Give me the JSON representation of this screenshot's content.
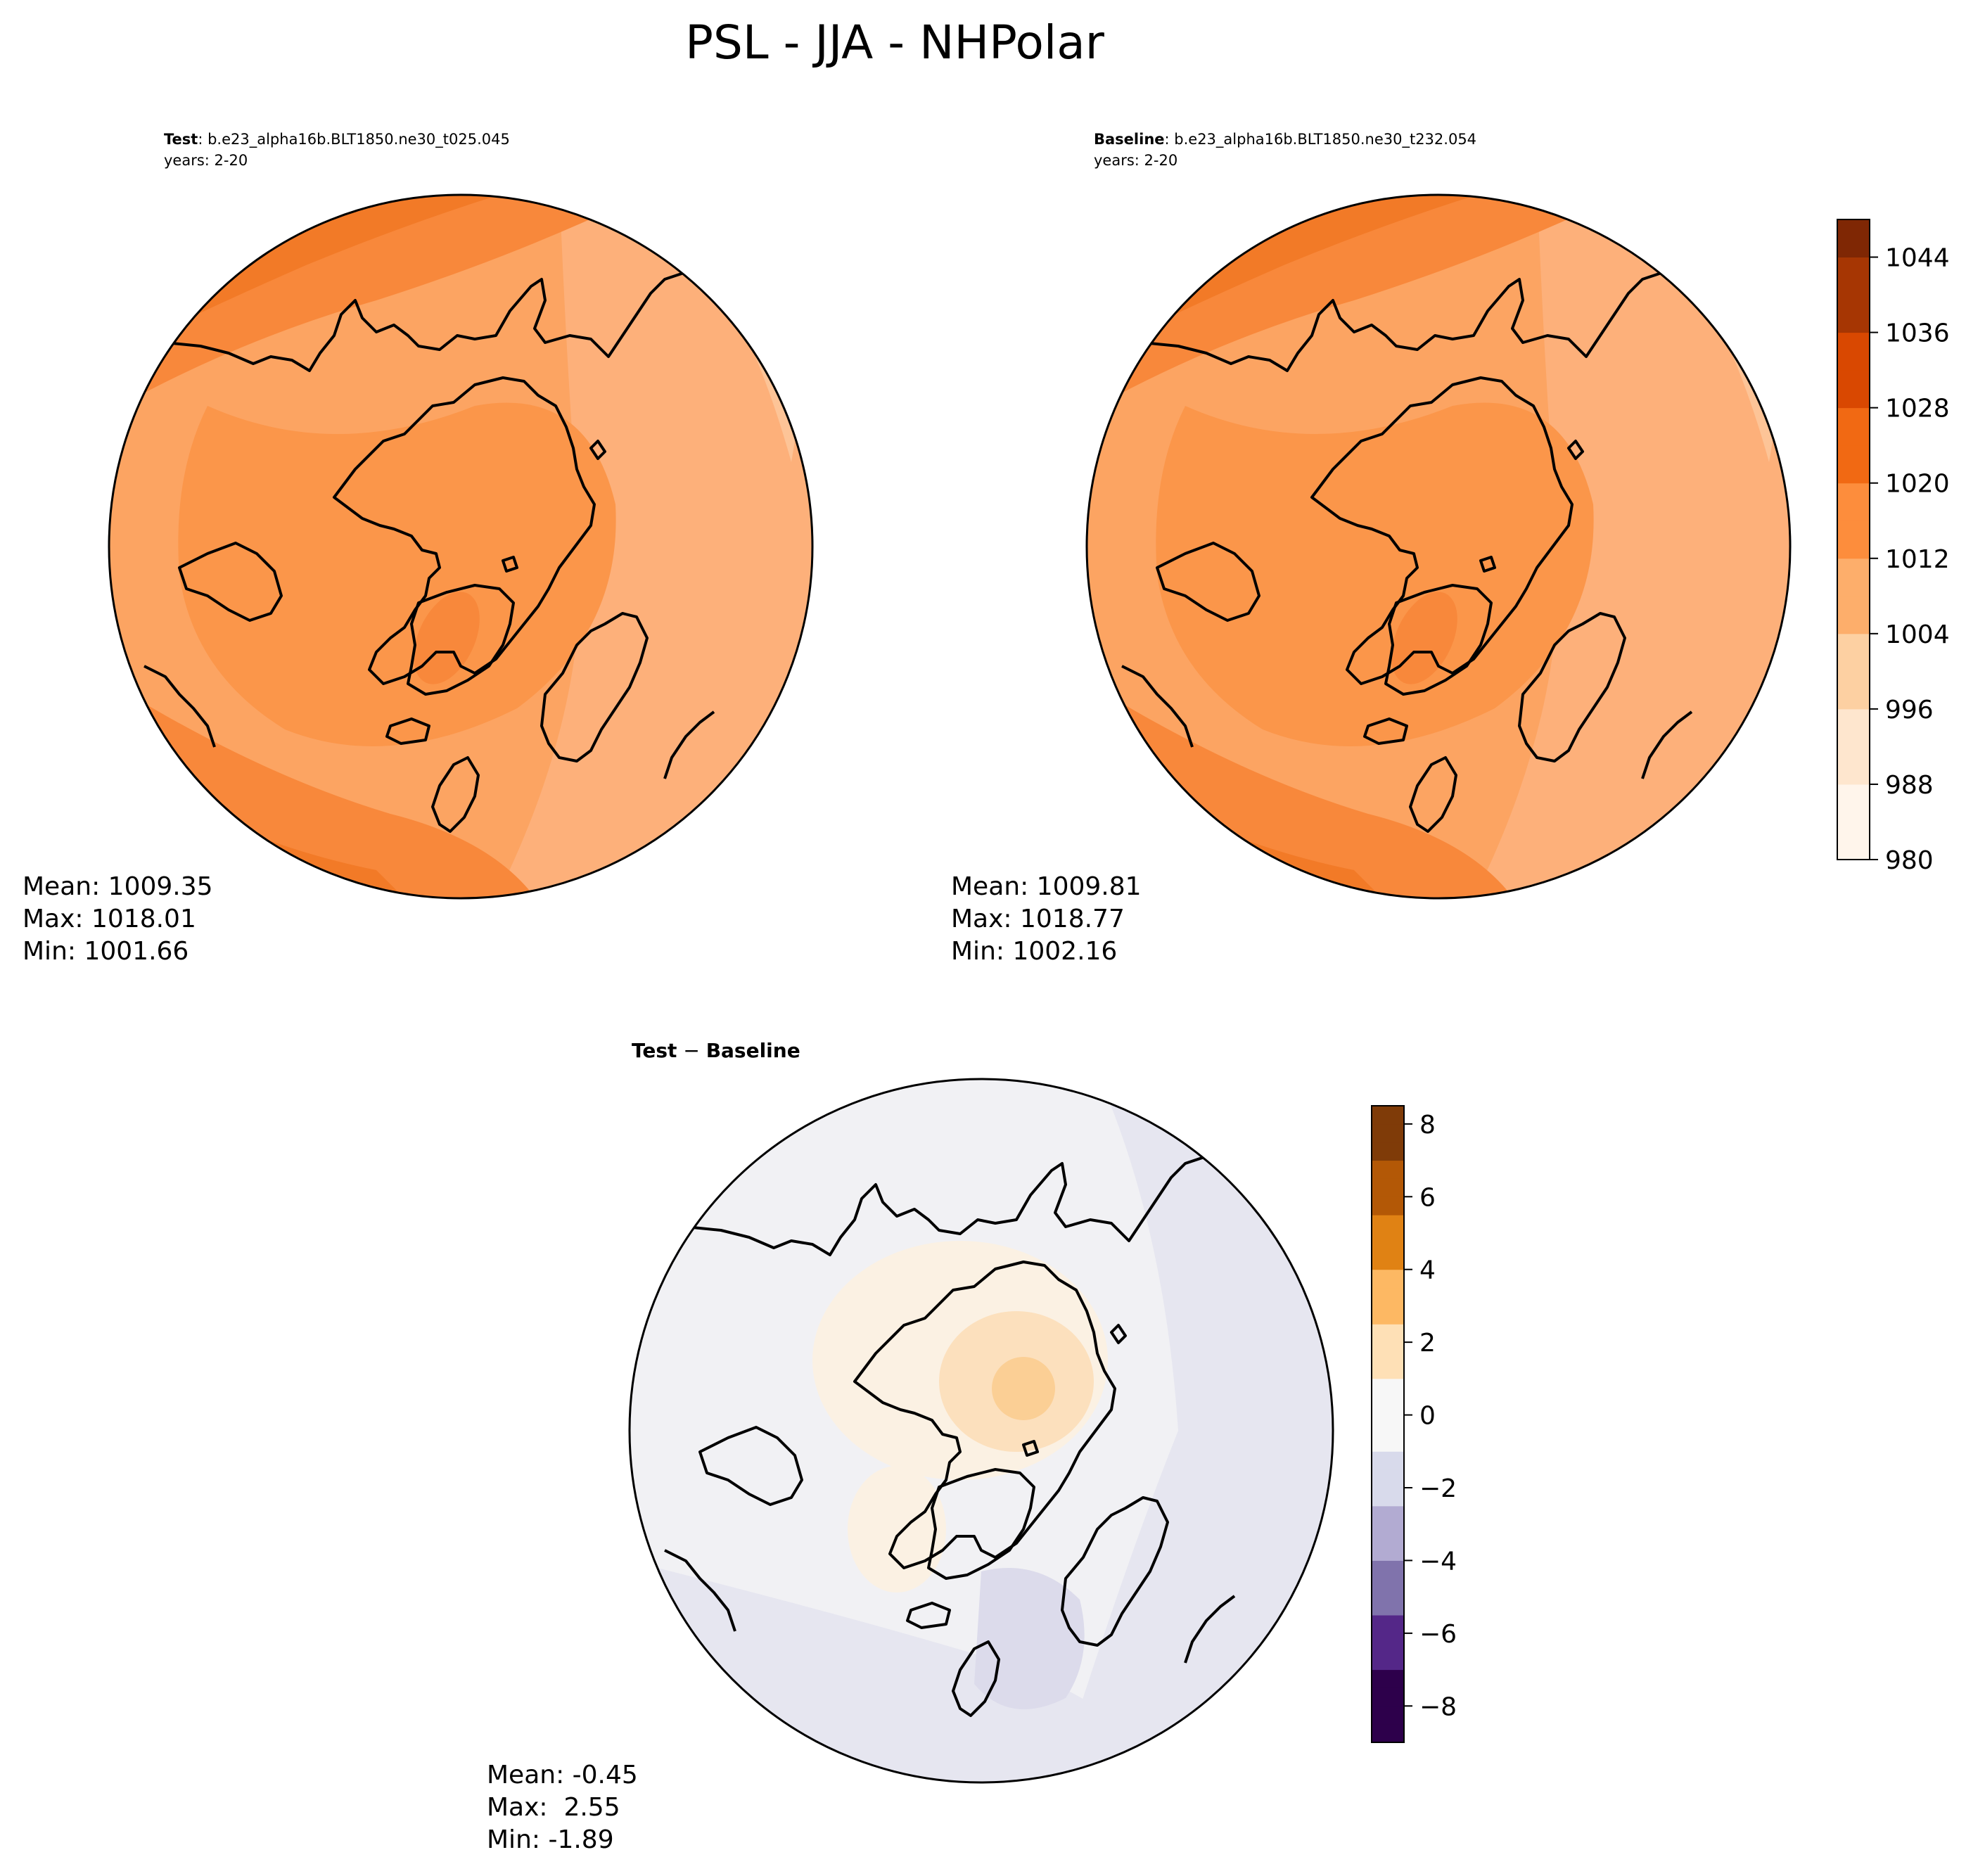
{
  "figure": {
    "title": "PSL - JJA - NHPolar"
  },
  "panels": {
    "test": {
      "label": "Test",
      "case": ": b.e23_alpha16b.BLT1850.ne30_t025.045",
      "years": "years: 2-20",
      "stats": {
        "mean": "Mean: 1009.35",
        "max": "Max: 1018.01",
        "min": "Min: 1001.66"
      }
    },
    "baseline": {
      "label": "Baseline",
      "case": ": b.e23_alpha16b.BLT1850.ne30_t232.054",
      "years": "years: 2-20",
      "stats": {
        "mean": "Mean: 1009.81",
        "max": "Max: 1018.77",
        "min": "Min: 1002.16"
      }
    },
    "diff": {
      "label_left": "Test",
      "op": " − ",
      "label_right": "Baseline",
      "stats": {
        "mean": "Mean: -0.45",
        "max": "Max:  2.55",
        "min": "Min: -1.89"
      }
    }
  },
  "colorbars": {
    "main": {
      "colormap": "Oranges",
      "range": [
        980,
        1048
      ],
      "step": 4,
      "ticks": [
        "980",
        "988",
        "996",
        "1004",
        "1012",
        "1020",
        "1028",
        "1036",
        "1044"
      ],
      "colors": [
        "#fff5eb",
        "#fee6ce",
        "#fdd0a2",
        "#fdae6b",
        "#fd8d3c",
        "#f16913",
        "#d94801",
        "#a63603",
        "#7f2704"
      ]
    },
    "diff": {
      "colormap": "PuOr_r",
      "range": [
        -9,
        8.5
      ],
      "ticks": [
        "8",
        "6",
        "4",
        "2",
        "0",
        "−2",
        "−4",
        "−6",
        "−8"
      ],
      "colors": [
        "#2d004b",
        "#542788",
        "#8073ac",
        "#b2abd2",
        "#d8daeb",
        "#f7f7f7",
        "#fee0b6",
        "#fdb863",
        "#e08214",
        "#b35806",
        "#7f3b08"
      ]
    }
  },
  "map_colors": {
    "main_bands": [
      "#fdb07a",
      "#fca462",
      "#fb964a",
      "#f8883b",
      "#f27a27",
      "#e9661a"
    ],
    "diff_bands": [
      "#dcdbeb",
      "#e6e6f0",
      "#f1f1f4",
      "#fbf1e3",
      "#fce0bd",
      "#fbcf95"
    ]
  }
}
